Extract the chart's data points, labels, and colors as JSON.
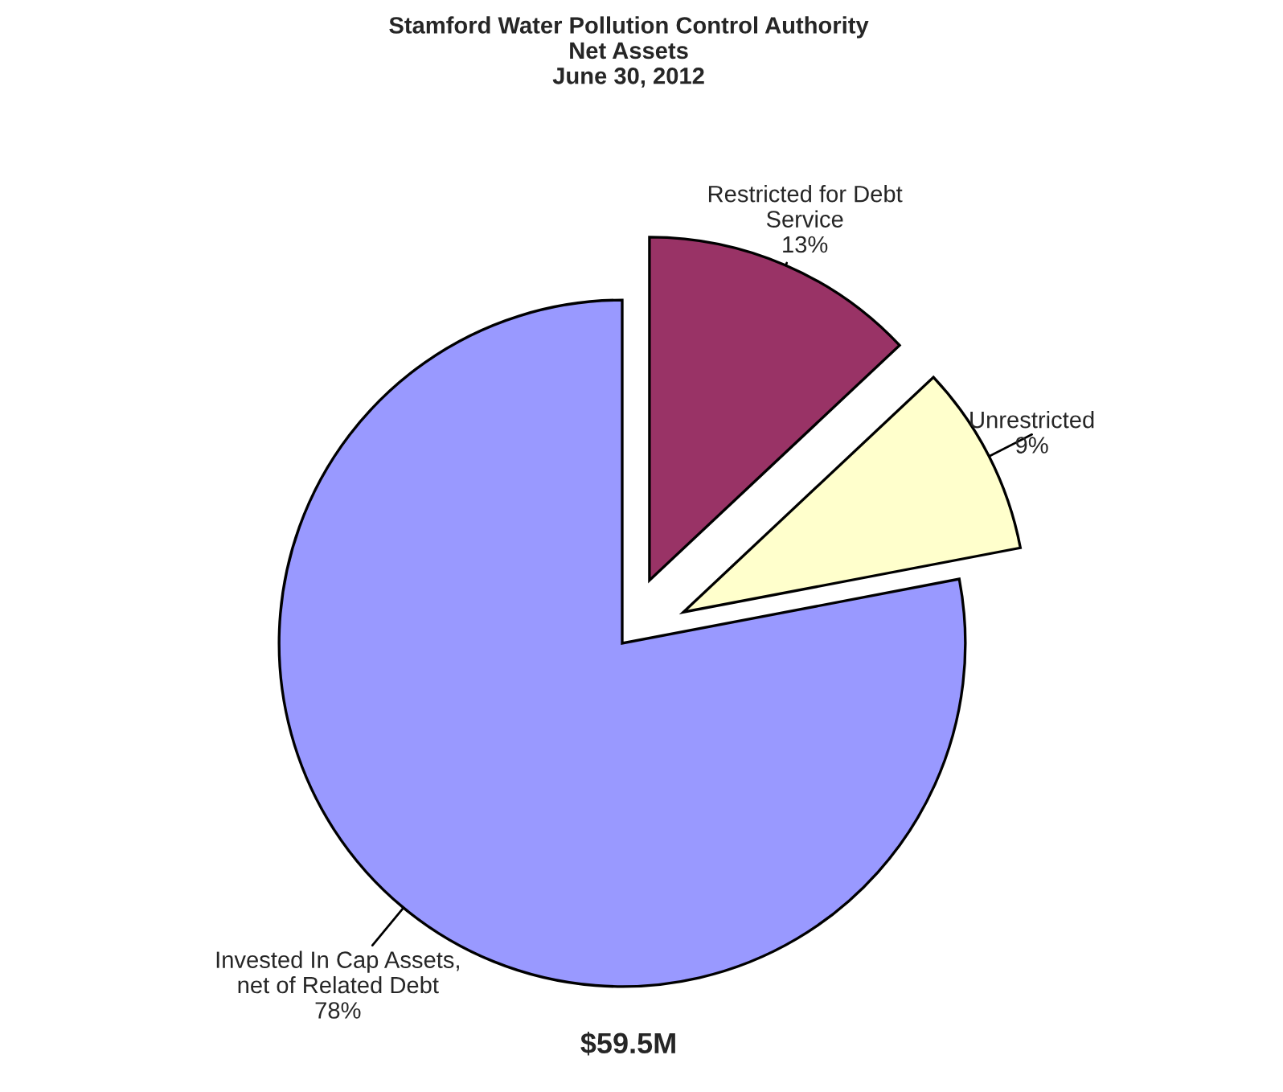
{
  "chart_data": {
    "type": "pie",
    "title": "Stamford Water Pollution Control Authority\nNet Assets\nJune 30, 2012",
    "categories": [
      "Restricted for Debt\nService",
      "Unrestricted",
      "Invested In Cap Assets,\nnet of Related Debt"
    ],
    "values": [
      13,
      9,
      78
    ],
    "colors": [
      "#993366",
      "#ffffcc",
      "#9999ff"
    ],
    "value_labels": [
      "13%",
      "9%",
      "78%"
    ],
    "annotations": [
      "$59.5M"
    ]
  }
}
